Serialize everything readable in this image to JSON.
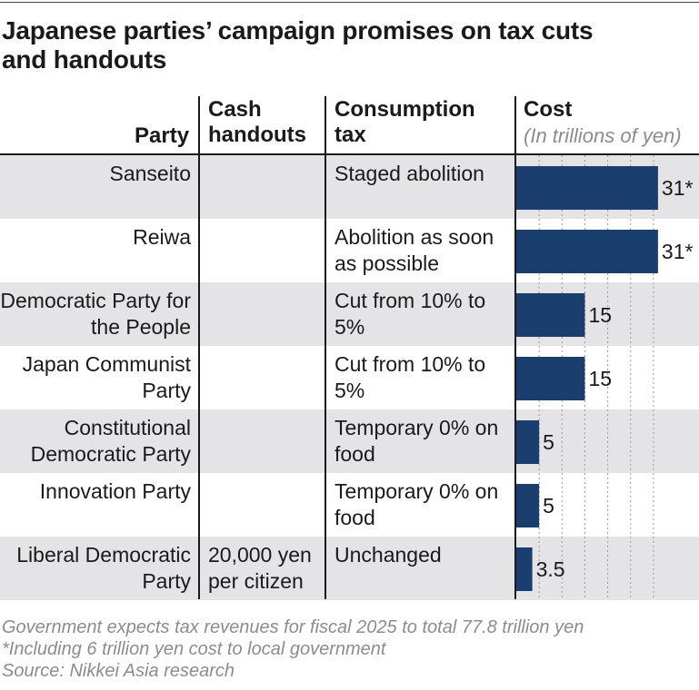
{
  "title": "Japanese parties’ campaign promises on tax cuts and handouts",
  "headers": {
    "party": "Party",
    "cash": "Cash handouts",
    "tax": "Consumption tax",
    "cost": "Cost",
    "cost_unit": "(In trillions of yen)"
  },
  "colors": {
    "bar": "#1a3f6e",
    "shade": "#e4e4e6",
    "note": "#8c8c8c"
  },
  "rows": [
    {
      "party": "Sanseito",
      "cash": "",
      "tax": "Staged abolition",
      "cost_label": "31*"
    },
    {
      "party": "Reiwa",
      "cash": "",
      "tax": "Abolition as soon as possible",
      "cost_label": "31*"
    },
    {
      "party": "Democratic Party for the People",
      "cash": "",
      "tax": "Cut from 10% to 5%",
      "cost_label": "15"
    },
    {
      "party": "Japan Communist Party",
      "cash": "",
      "tax": "Cut from 10% to 5%",
      "cost_label": "15"
    },
    {
      "party": "Constitutional Democratic Party",
      "cash": "",
      "tax": "Temporary 0% on food",
      "cost_label": "5"
    },
    {
      "party": "Innovation Party",
      "cash": "",
      "tax": "Temporary 0% on food",
      "cost_label": "5"
    },
    {
      "party": "Liberal Democratic Party",
      "cash": "20,000 yen per citizen",
      "tax": "Unchanged",
      "cost_label": "3.5"
    }
  ],
  "chart_data": {
    "type": "bar",
    "orientation": "horizontal",
    "categories": [
      "Sanseito",
      "Reiwa",
      "Democratic Party for the People",
      "Japan Communist Party",
      "Constitutional Democratic Party",
      "Innovation Party",
      "Liberal Democratic Party"
    ],
    "values": [
      31,
      31,
      15,
      15,
      5,
      5,
      3.5
    ],
    "value_labels": [
      "31*",
      "31*",
      "15",
      "15",
      "5",
      "5",
      "3.5"
    ],
    "title": "Cost",
    "xlabel": "(In trillions of yen)",
    "ylabel": "",
    "xlim": [
      0,
      35
    ],
    "grid": true,
    "gridlines": [
      5,
      10,
      15,
      20,
      25,
      30
    ]
  },
  "footnotes": [
    "Government expects tax revenues for fiscal 2025 to total 77.8 trillion yen",
    "*Including 6 trillion yen cost to local government",
    "Source: Nikkei Asia research"
  ]
}
